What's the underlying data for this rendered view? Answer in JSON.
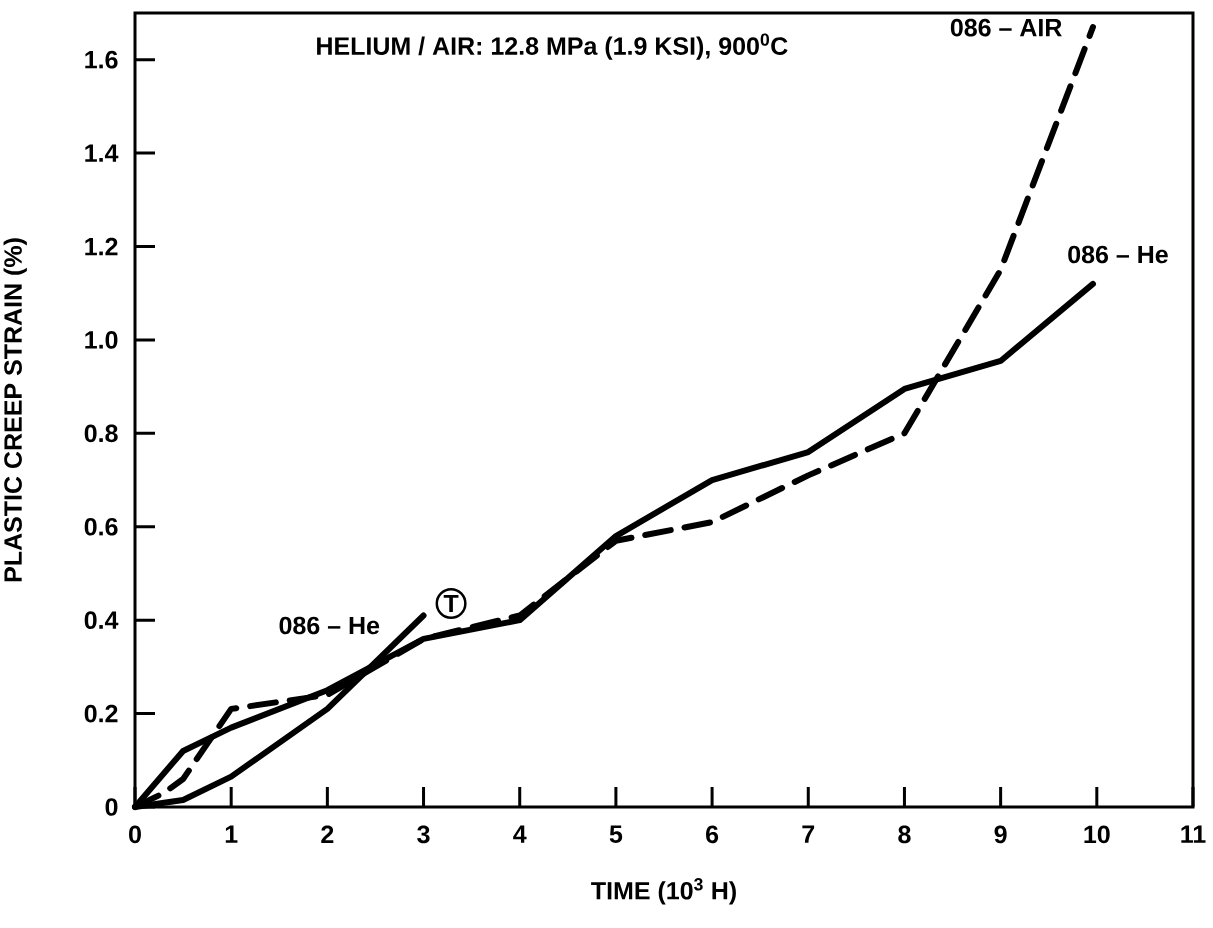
{
  "chart_data": {
    "type": "line",
    "title": "HELIUM / AIR:  12.8 MPa (1.9 KSI), 900$^{0}$C",
    "xlabel": "TIME (10$^{3}$ H)",
    "ylabel": "PLASTIC CREEP STRAIN (%)",
    "xlim": [
      0,
      11
    ],
    "ylim": [
      0,
      1.7
    ],
    "xticks": [
      0,
      1,
      2,
      3,
      4,
      5,
      6,
      7,
      8,
      9,
      10,
      11
    ],
    "yticks": [
      0,
      0.2,
      0.4,
      0.6,
      0.8,
      {
        "value": 1.0,
        "label": "1.0"
      },
      1.2,
      1.4,
      1.6
    ],
    "grid": false,
    "marker": "none",
    "series": [
      {
        "name": "086 – AIR",
        "color": "#000000",
        "line_style": "dashed",
        "x": [
          0,
          0.3,
          0.5,
          1,
          2,
          3,
          4,
          5,
          6,
          7,
          8,
          9,
          9.96
        ],
        "values": [
          0,
          0.03,
          0.06,
          0.21,
          0.24,
          0.36,
          0.41,
          0.57,
          0.61,
          0.71,
          0.8,
          1.15,
          1.67
        ]
      },
      {
        "name": "086 – He",
        "color": "#000000",
        "line_style": "solid",
        "x": [
          0,
          0.5,
          1,
          2,
          3,
          4,
          5,
          6,
          7,
          8,
          9,
          9.96
        ],
        "values": [
          0,
          0.12,
          0.17,
          0.25,
          0.36,
          0.4,
          0.58,
          0.7,
          0.76,
          0.895,
          0.955,
          1.12
        ]
      },
      {
        "name": "086 – He",
        "color": "#000000",
        "line_style": "solid",
        "x": [
          0,
          0.5,
          1,
          2,
          3
        ],
        "values": [
          0,
          0.015,
          0.065,
          0.21,
          0.41
        ]
      }
    ],
    "annotations": [
      "T"
    ]
  }
}
